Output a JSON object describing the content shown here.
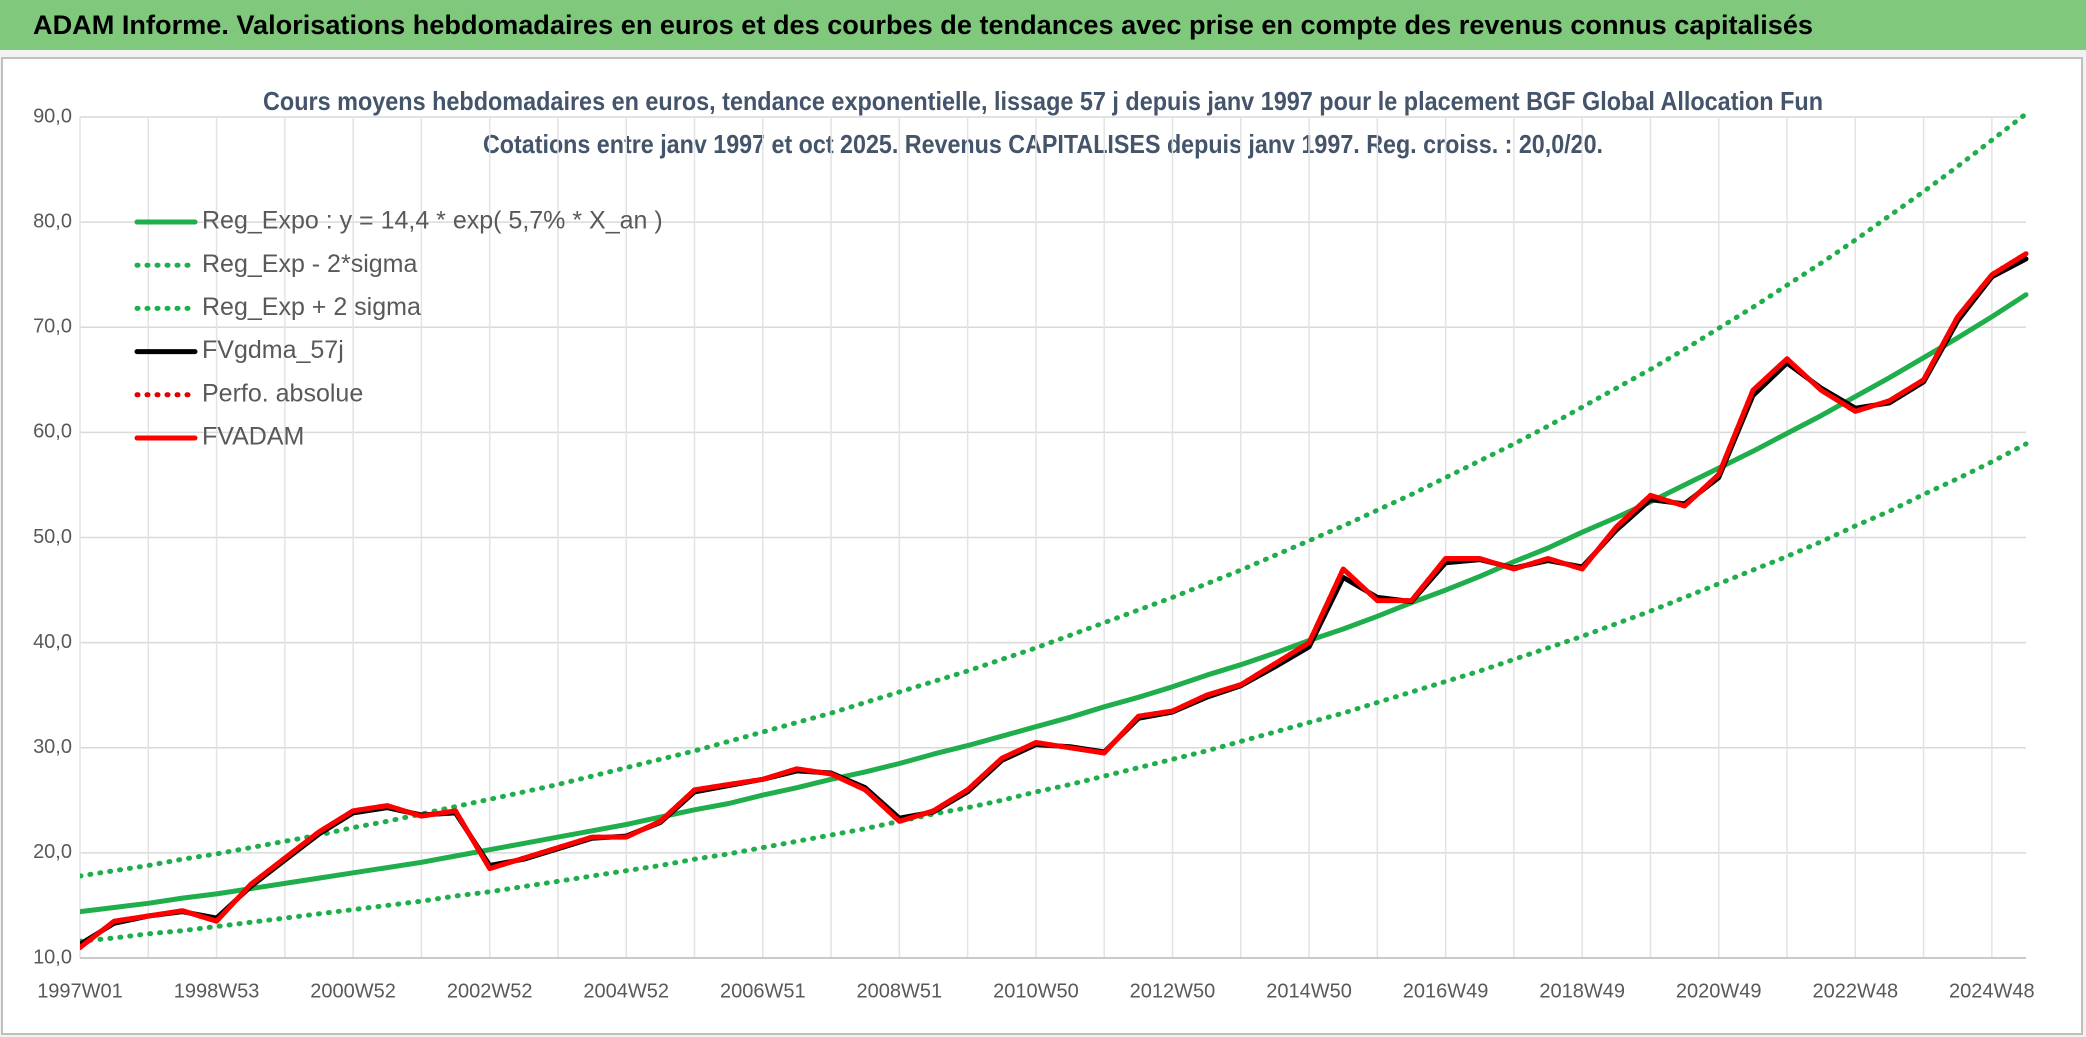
{
  "header": {
    "title": "ADAM Informe. Valorisations hebdomadaires en euros et des courbes de tendances avec prise en compte des revenus connus capitalisés"
  },
  "chart_data": {
    "type": "line",
    "title": "Cours moyens hebdomadaires en euros, tendance exponentielle, lissage 57 j depuis janv 1997 pour le placement BGF Global Allocation Fun",
    "subtitle": "Cotations entre janv 1997 et oct 2025. Revenus CAPITALISES depuis janv 1997. Reg. croiss. : 20,0/20.",
    "categories": [
      "1997W01",
      null,
      null,
      null,
      "1998W53",
      null,
      null,
      null,
      "2000W52",
      null,
      null,
      null,
      "2002W52",
      null,
      null,
      null,
      "2004W52",
      null,
      null,
      null,
      "2006W51",
      null,
      null,
      null,
      "2008W51",
      null,
      null,
      null,
      "2010W50",
      null,
      null,
      null,
      "2012W50",
      null,
      null,
      null,
      "2014W50",
      null,
      null,
      null,
      "2016W49",
      null,
      null,
      null,
      "2018W49",
      null,
      null,
      null,
      "2020W49",
      null,
      null,
      null,
      "2022W48",
      null,
      null,
      null,
      "2024W48",
      null
    ],
    "ylim": [
      10,
      90
    ],
    "yticks": [
      {
        "value": 10,
        "label": "10,0"
      },
      {
        "value": 20,
        "label": "20,0"
      },
      {
        "value": 30,
        "label": "30,0"
      },
      {
        "value": 40,
        "label": "40,0"
      },
      {
        "value": 50,
        "label": "50,0"
      },
      {
        "value": 60,
        "label": "60,0"
      },
      {
        "value": 70,
        "label": "70,0"
      },
      {
        "value": 80,
        "label": "80,0"
      },
      {
        "value": 90,
        "label": "90,0"
      }
    ],
    "grid": true,
    "legend": "top-left",
    "series": [
      {
        "name": "Reg_Expo : y = 14,4 * exp( 5,7% *  X_an )",
        "color": "#1fae4b",
        "style": "solid",
        "values": [
          14.4,
          14.8,
          15.2,
          15.7,
          16.1,
          16.6,
          17.1,
          17.6,
          18.1,
          18.6,
          19.1,
          19.7,
          20.3,
          20.9,
          21.5,
          22.1,
          22.7,
          23.4,
          24.1,
          24.7,
          25.5,
          26.2,
          27.0,
          27.7,
          28.5,
          29.4,
          30.2,
          31.1,
          32.0,
          32.9,
          33.9,
          34.8,
          35.8,
          36.9,
          37.9,
          39.0,
          40.2,
          41.3,
          42.5,
          43.8,
          45.0,
          46.3,
          47.7,
          49.0,
          50.5,
          51.9,
          53.4,
          55.0,
          56.6,
          58.2,
          59.9,
          61.6,
          63.4,
          65.2,
          67.1,
          69.0,
          71.0,
          73.1
        ]
      },
      {
        "name": "Reg_Exp - 2*sigma",
        "color": "#1fae4b",
        "style": "dotted",
        "values": [
          11.6,
          11.9,
          12.3,
          12.6,
          13.0,
          13.4,
          13.8,
          14.2,
          14.6,
          15.0,
          15.4,
          15.9,
          16.3,
          16.8,
          17.3,
          17.8,
          18.3,
          18.8,
          19.4,
          19.9,
          20.5,
          21.1,
          21.7,
          22.3,
          23.0,
          23.7,
          24.3,
          25.0,
          25.8,
          26.5,
          27.3,
          28.1,
          28.9,
          29.7,
          30.6,
          31.5,
          32.4,
          33.3,
          34.3,
          35.3,
          36.3,
          37.3,
          38.4,
          39.5,
          40.6,
          41.8,
          43.0,
          44.3,
          45.6,
          46.9,
          48.2,
          49.6,
          51.1,
          52.5,
          54.1,
          55.6,
          57.2,
          58.9
        ]
      },
      {
        "name": "Reg_Exp + 2 sigma",
        "color": "#1fae4b",
        "style": "dotted",
        "values": [
          17.8,
          18.3,
          18.8,
          19.4,
          19.9,
          20.5,
          21.1,
          21.7,
          22.4,
          23.0,
          23.7,
          24.4,
          25.1,
          25.8,
          26.5,
          27.3,
          28.1,
          28.9,
          29.7,
          30.6,
          31.5,
          32.4,
          33.3,
          34.3,
          35.3,
          36.3,
          37.3,
          38.4,
          39.5,
          40.7,
          41.9,
          43.1,
          44.3,
          45.6,
          46.9,
          48.3,
          49.7,
          51.1,
          52.6,
          54.1,
          55.7,
          57.3,
          58.9,
          60.6,
          62.4,
          64.2,
          66.0,
          67.9,
          69.9,
          71.9,
          74.0,
          76.1,
          78.3,
          80.6,
          82.9,
          85.3,
          87.8,
          90.3
        ]
      },
      {
        "name": "FVgdma_57j",
        "color": "#000000",
        "style": "solid",
        "values": [
          11.3,
          13.3,
          14.0,
          14.4,
          13.8,
          16.8,
          19.3,
          21.8,
          23.8,
          24.3,
          23.6,
          23.8,
          18.8,
          19.4,
          20.4,
          21.4,
          21.6,
          22.9,
          25.8,
          26.4,
          27.0,
          27.8,
          27.6,
          26.2,
          23.3,
          23.9,
          25.8,
          28.8,
          30.3,
          30.1,
          29.6,
          32.8,
          33.4,
          34.8,
          35.9,
          37.7,
          39.6,
          46.2,
          44.3,
          43.9,
          47.6,
          47.9,
          47.1,
          47.8,
          47.2,
          50.7,
          53.6,
          53.2,
          55.7,
          63.5,
          66.6,
          64.2,
          62.3,
          62.8,
          64.8,
          70.6,
          74.8,
          76.5
        ]
      },
      {
        "name": "Perfo. absolue",
        "color": "#e00000",
        "style": "dotted",
        "values": [
          11.0,
          13.5,
          14.0,
          14.5,
          13.5,
          17.0,
          19.5,
          22.0,
          24.0,
          24.5,
          23.5,
          24.0,
          18.5,
          19.5,
          20.5,
          21.5,
          21.5,
          23.0,
          26.0,
          26.5,
          27.0,
          28.0,
          27.5,
          26.0,
          23.0,
          24.0,
          26.0,
          29.0,
          30.5,
          30.0,
          29.5,
          33.0,
          33.5,
          35.0,
          36.0,
          38.0,
          40.0,
          47.0,
          44.0,
          44.0,
          48.0,
          48.0,
          47.0,
          48.0,
          47.0,
          51.0,
          54.0,
          53.0,
          56.0,
          64.0,
          67.0,
          64.0,
          62.0,
          63.0,
          65.0,
          71.0,
          75.0,
          77.0
        ]
      },
      {
        "name": "FVADAM",
        "color": "#ff0000",
        "style": "solid",
        "values": [
          11.0,
          13.5,
          14.0,
          14.5,
          13.5,
          17.0,
          19.5,
          22.0,
          24.0,
          24.5,
          23.5,
          24.0,
          18.5,
          19.5,
          20.5,
          21.5,
          21.5,
          23.0,
          26.0,
          26.5,
          27.0,
          28.0,
          27.5,
          26.0,
          23.0,
          24.0,
          26.0,
          29.0,
          30.5,
          30.0,
          29.5,
          33.0,
          33.5,
          35.0,
          36.0,
          38.0,
          40.0,
          47.0,
          44.0,
          44.0,
          48.0,
          48.0,
          47.0,
          48.0,
          47.0,
          51.0,
          54.0,
          53.0,
          56.0,
          64.0,
          67.0,
          64.0,
          62.0,
          63.0,
          65.0,
          71.0,
          75.0,
          77.0
        ]
      }
    ]
  }
}
